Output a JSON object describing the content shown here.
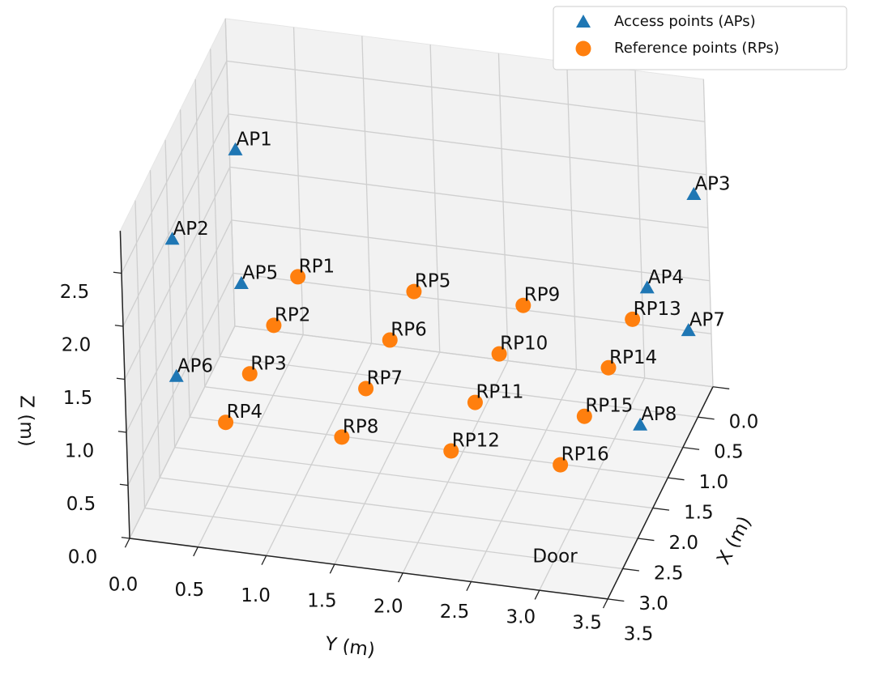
{
  "chart_data": {
    "type": "scatter3d",
    "xlabel": "X (m)",
    "ylabel": "Y (m)",
    "zlabel": "Z (m)",
    "xlim": [
      0,
      3.5
    ],
    "ylim": [
      0,
      3.5
    ],
    "zlim": [
      0,
      2.9
    ],
    "xticks": [
      {
        "value": 0,
        "label": "0.0"
      },
      {
        "value": 0.5,
        "label": "0.5"
      },
      {
        "value": 1,
        "label": "1.0"
      },
      {
        "value": 1.5,
        "label": "1.5"
      },
      {
        "value": 2,
        "label": "2.0"
      },
      {
        "value": 2.5,
        "label": "2.5"
      },
      {
        "value": 3,
        "label": "3.0"
      },
      {
        "value": 3.5,
        "label": "3.5"
      }
    ],
    "yticks": [
      {
        "value": 0,
        "label": "0.0"
      },
      {
        "value": 0.5,
        "label": "0.5"
      },
      {
        "value": 1,
        "label": "1.0"
      },
      {
        "value": 1.5,
        "label": "1.5"
      },
      {
        "value": 2,
        "label": "2.0"
      },
      {
        "value": 2.5,
        "label": "2.5"
      },
      {
        "value": 3,
        "label": "3.0"
      },
      {
        "value": 3.5,
        "label": "3.5"
      }
    ],
    "zticks": [
      {
        "value": 0,
        "label": "0.0"
      },
      {
        "value": 0.5,
        "label": "0.5"
      },
      {
        "value": 1,
        "label": "1.0"
      },
      {
        "value": 1.5,
        "label": "1.5"
      },
      {
        "value": 2,
        "label": "2.0"
      },
      {
        "value": 2.5,
        "label": "2.5"
      }
    ],
    "grid": true,
    "legend": "upper right",
    "annotation": {
      "text": "Door",
      "color": "#e8141c"
    },
    "series": [
      {
        "name": "Access points (APs)",
        "color": "#1f77b4",
        "marker": "triangle",
        "labels": [
          "AP1",
          "AP2",
          "AP3",
          "AP4",
          "AP5",
          "AP6",
          "AP7",
          "AP8"
        ],
        "x": [
          0.54,
          2.05,
          0.33,
          0.56,
          1.29,
          2.86,
          1.14,
          2.7
        ],
        "y": [
          0.17,
          0.04,
          3.48,
          3.17,
          0.36,
          0.23,
          3.6,
          3.59
        ],
        "z": [
          2.0,
          2.0,
          2.0,
          1.2,
          1.2,
          1.2,
          1.2,
          1.2
        ]
      },
      {
        "name": "Reference points (RPs)",
        "color": "#ff7f0e",
        "marker": "circle",
        "labels": [
          "RP1",
          "RP2",
          "RP3",
          "RP4",
          "RP5",
          "RP6",
          "RP7",
          "RP8",
          "RP9",
          "RP10",
          "RP11",
          "RP12",
          "RP13",
          "RP14",
          "RP15",
          "RP16"
        ],
        "x": [
          0.75,
          1.55,
          2.35,
          3.15,
          0.75,
          1.55,
          2.35,
          3.15,
          0.75,
          1.55,
          2.35,
          3.15,
          0.75,
          1.55,
          2.35,
          3.15
        ],
        "y": [
          0.65,
          0.65,
          0.65,
          0.65,
          1.5,
          1.5,
          1.5,
          1.5,
          2.3,
          2.3,
          2.3,
          2.3,
          3.1,
          3.1,
          3.1,
          3.1
        ],
        "z": [
          1,
          1,
          1,
          1,
          1,
          1,
          1,
          1,
          1,
          1,
          1,
          1,
          1,
          1,
          1,
          1
        ]
      }
    ]
  }
}
